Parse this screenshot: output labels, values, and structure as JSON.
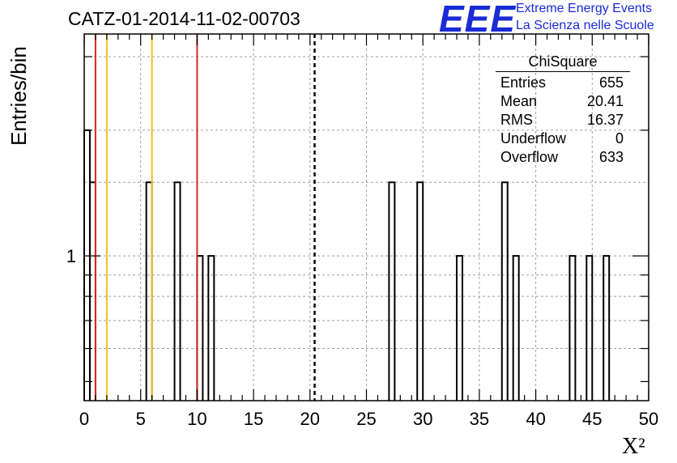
{
  "title": "CATZ-01-2014-11-02-00703",
  "logo": {
    "mark": "EEE",
    "line1": "Extreme Energy Events",
    "line2": "La Scienza nelle Scuole"
  },
  "stats": {
    "title": "ChiSquare",
    "rows": [
      {
        "label": "Entries",
        "value": "655"
      },
      {
        "label": "Mean",
        "value": "20.41"
      },
      {
        "label": "RMS",
        "value": "16.37"
      },
      {
        "label": "Underflow",
        "value": "0"
      },
      {
        "label": "Overflow",
        "value": "633"
      }
    ]
  },
  "colors": {
    "red_line": "#d42a2a",
    "yellow_line": "#f2c01e",
    "axis": "#000000",
    "grid": "#a0a0a0"
  },
  "chart_data": {
    "type": "bar",
    "histogram": true,
    "xlabel": "X²",
    "ylabel": "Entries/bin",
    "xlim": [
      0,
      50
    ],
    "ylim": [
      0.45,
      3.4
    ],
    "y_log_scale": true,
    "grid": true,
    "bin_width": 0.5,
    "x_ticks": [
      "0",
      "5",
      "10",
      "15",
      "20",
      "25",
      "30",
      "35",
      "40",
      "45",
      "50"
    ],
    "y_ticks": [
      "1"
    ],
    "bins": [
      {
        "x": 0.0,
        "value": 2
      },
      {
        "x": 0.5,
        "value": 1.5
      },
      {
        "x": 5.5,
        "value": 1.5
      },
      {
        "x": 8.0,
        "value": 1.5
      },
      {
        "x": 10.0,
        "value": 1
      },
      {
        "x": 11.0,
        "value": 1
      },
      {
        "x": 27.0,
        "value": 1.5
      },
      {
        "x": 29.5,
        "value": 1.5
      },
      {
        "x": 33.0,
        "value": 1
      },
      {
        "x": 37.0,
        "value": 1.5
      },
      {
        "x": 38.0,
        "value": 1
      },
      {
        "x": 43.0,
        "value": 1
      },
      {
        "x": 44.5,
        "value": 1
      },
      {
        "x": 46.0,
        "value": 1
      }
    ],
    "vertical_lines": [
      {
        "x": 1.0,
        "color": "red"
      },
      {
        "x": 2.0,
        "color": "yellow"
      },
      {
        "x": 6.0,
        "color": "yellow"
      },
      {
        "x": 10.0,
        "color": "red"
      },
      {
        "x": 20.41,
        "color": "black",
        "style": "dashed"
      }
    ]
  }
}
